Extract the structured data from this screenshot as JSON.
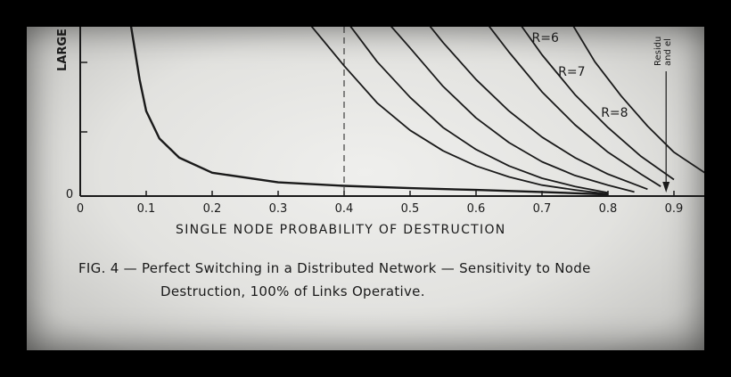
{
  "caption": {
    "line1": "FIG. 4 — Perfect Switching in a Distributed Network — Sensitivity to Node",
    "line2": "Destruction, 100% of Links Operative."
  },
  "chart_data": {
    "type": "line",
    "title": "",
    "xlabel": "SINGLE NODE PROBABILITY OF DESTRUCTION",
    "ylabel": "LARGE",
    "xlim": [
      0,
      0.95
    ],
    "ylim": [
      0,
      1.3
    ],
    "x_ticks": [
      "0",
      "0.1",
      "0.2",
      "0.3",
      "0.4",
      "0.5",
      "0.6",
      "0.7",
      "0.8",
      "0.9"
    ],
    "y_ticks": [
      "0"
    ],
    "grid": false,
    "reference_line_x": 0.4,
    "annotation": {
      "lines": [
        "Residu",
        "and el"
      ],
      "x": 0.88
    },
    "series": [
      {
        "name": "",
        "x": [
          0.075,
          0.08,
          0.09,
          0.1,
          0.12,
          0.15,
          0.2,
          0.3,
          0.4,
          0.5,
          0.6,
          0.7,
          0.8
        ],
        "y": [
          1.3,
          1.15,
          0.85,
          0.62,
          0.42,
          0.28,
          0.17,
          0.1,
          0.075,
          0.058,
          0.045,
          0.03,
          0.012
        ]
      },
      {
        "name": "",
        "x": [
          0.34,
          0.4,
          0.45,
          0.5,
          0.55,
          0.6,
          0.65,
          0.7,
          0.75,
          0.8
        ],
        "y": [
          1.3,
          0.95,
          0.68,
          0.48,
          0.33,
          0.22,
          0.14,
          0.08,
          0.045,
          0.015
        ]
      },
      {
        "name": "",
        "x": [
          0.4,
          0.45,
          0.5,
          0.55,
          0.6,
          0.65,
          0.7,
          0.75,
          0.8
        ],
        "y": [
          1.3,
          0.98,
          0.72,
          0.5,
          0.34,
          0.22,
          0.13,
          0.07,
          0.025
        ]
      },
      {
        "name": "",
        "x": [
          0.46,
          0.5,
          0.55,
          0.6,
          0.65,
          0.7,
          0.75,
          0.8,
          0.84
        ],
        "y": [
          1.3,
          1.08,
          0.8,
          0.57,
          0.39,
          0.25,
          0.15,
          0.08,
          0.03
        ]
      },
      {
        "name": "",
        "x": [
          0.52,
          0.55,
          0.6,
          0.65,
          0.7,
          0.75,
          0.8,
          0.86
        ],
        "y": [
          1.3,
          1.12,
          0.85,
          0.62,
          0.43,
          0.28,
          0.16,
          0.05
        ]
      },
      {
        "name": "R=6",
        "x": [
          0.61,
          0.65,
          0.7,
          0.75,
          0.8,
          0.85,
          0.88
        ],
        "y": [
          1.3,
          1.05,
          0.76,
          0.52,
          0.32,
          0.16,
          0.07
        ]
      },
      {
        "name": "R=7",
        "x": [
          0.66,
          0.7,
          0.75,
          0.8,
          0.85,
          0.9
        ],
        "y": [
          1.3,
          1.03,
          0.74,
          0.5,
          0.29,
          0.12
        ]
      },
      {
        "name": "R=8",
        "x": [
          0.74,
          0.78,
          0.82,
          0.86,
          0.9,
          0.95
        ],
        "y": [
          1.3,
          0.98,
          0.73,
          0.51,
          0.32,
          0.16
        ]
      }
    ]
  }
}
